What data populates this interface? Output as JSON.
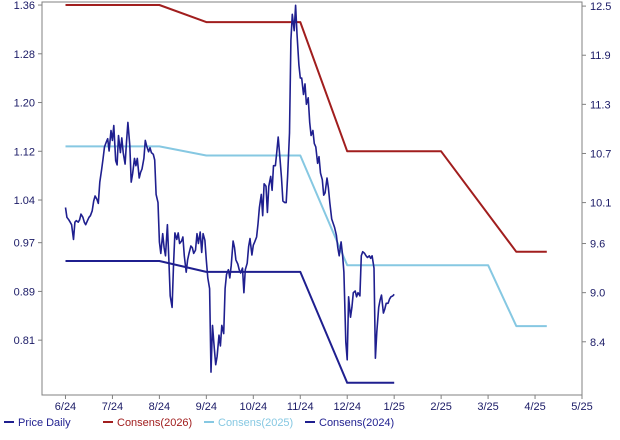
{
  "chart_data": {
    "type": "line",
    "x_ticks": [
      "6/24",
      "7/24",
      "8/24",
      "9/24",
      "10/24",
      "11/24",
      "12/24",
      "1/25",
      "2/25",
      "3/25",
      "4/25",
      "5/25"
    ],
    "y_left": {
      "ticks": [
        "1.36",
        "1.28",
        "1.20",
        "1.12",
        "1.04",
        "0.97",
        "0.89",
        "0.81"
      ],
      "min": 0.72,
      "max": 1.365
    },
    "y_right": {
      "ticks": [
        "12.5",
        "11.9",
        "11.3",
        "10.7",
        "10.1",
        "9.6",
        "9.0",
        "8.4"
      ],
      "min": 7.75,
      "max": 12.55
    },
    "grid": false,
    "legend_position": "bottom",
    "series": [
      {
        "name": "Price Daily",
        "color": "#1f1f8f",
        "axis": "right",
        "points": [
          [
            5.0,
            10.04
          ],
          [
            5.03,
            9.92
          ],
          [
            5.07,
            9.89
          ],
          [
            5.1,
            9.86
          ],
          [
            5.13,
            9.83
          ],
          [
            5.17,
            9.65
          ],
          [
            5.2,
            9.86
          ],
          [
            5.23,
            9.88
          ],
          [
            5.27,
            9.86
          ],
          [
            5.3,
            9.89
          ],
          [
            5.33,
            9.96
          ],
          [
            5.37,
            9.92
          ],
          [
            5.4,
            9.86
          ],
          [
            5.43,
            9.83
          ],
          [
            5.47,
            9.88
          ],
          [
            5.5,
            9.92
          ],
          [
            5.53,
            9.94
          ],
          [
            5.57,
            10.0
          ],
          [
            5.6,
            10.12
          ],
          [
            5.63,
            10.18
          ],
          [
            5.67,
            10.14
          ],
          [
            5.7,
            10.09
          ],
          [
            5.73,
            10.35
          ],
          [
            5.77,
            10.5
          ],
          [
            5.8,
            10.63
          ],
          [
            5.83,
            10.78
          ],
          [
            5.87,
            10.84
          ],
          [
            5.9,
            10.88
          ],
          [
            5.93,
            10.73
          ],
          [
            5.97,
            10.98
          ],
          [
            6.0,
            10.86
          ],
          [
            6.03,
            11.04
          ],
          [
            6.07,
            10.61
          ],
          [
            6.1,
            10.56
          ],
          [
            6.13,
            10.92
          ],
          [
            6.17,
            10.71
          ],
          [
            6.2,
            10.89
          ],
          [
            6.23,
            10.71
          ],
          [
            6.27,
            10.57
          ],
          [
            6.3,
            10.84
          ],
          [
            6.33,
            11.08
          ],
          [
            6.37,
            10.8
          ],
          [
            6.4,
            10.35
          ],
          [
            6.43,
            10.45
          ],
          [
            6.47,
            10.64
          ],
          [
            6.5,
            10.55
          ],
          [
            6.53,
            10.64
          ],
          [
            6.57,
            10.4
          ],
          [
            6.6,
            10.47
          ],
          [
            6.63,
            10.51
          ],
          [
            6.67,
            10.64
          ],
          [
            6.7,
            10.86
          ],
          [
            6.73,
            10.79
          ],
          [
            6.77,
            10.72
          ],
          [
            6.8,
            10.77
          ],
          [
            6.83,
            10.71
          ],
          [
            6.87,
            10.69
          ],
          [
            6.9,
            10.62
          ],
          [
            6.93,
            10.2
          ],
          [
            6.97,
            10.1
          ],
          [
            7.0,
            9.62
          ],
          [
            7.03,
            9.48
          ],
          [
            7.07,
            9.72
          ],
          [
            7.1,
            9.55
          ],
          [
            7.13,
            9.45
          ],
          [
            7.17,
            9.83
          ],
          [
            7.2,
            9.42
          ],
          [
            7.23,
            8.96
          ],
          [
            7.27,
            8.82
          ],
          [
            7.3,
            9.33
          ],
          [
            7.33,
            9.73
          ],
          [
            7.37,
            9.65
          ],
          [
            7.4,
            9.73
          ],
          [
            7.43,
            9.6
          ],
          [
            7.47,
            9.63
          ],
          [
            7.5,
            9.68
          ],
          [
            7.53,
            9.45
          ],
          [
            7.57,
            9.25
          ],
          [
            7.6,
            9.4
          ],
          [
            7.63,
            9.48
          ],
          [
            7.67,
            9.57
          ],
          [
            7.7,
            9.55
          ],
          [
            7.73,
            9.48
          ],
          [
            7.77,
            9.52
          ],
          [
            7.8,
            9.72
          ],
          [
            7.83,
            9.6
          ],
          [
            7.87,
            9.74
          ],
          [
            7.9,
            9.49
          ],
          [
            7.93,
            9.72
          ],
          [
            7.97,
            9.64
          ],
          [
            8.0,
            9.4
          ],
          [
            8.03,
            9.18
          ],
          [
            8.07,
            9.05
          ],
          [
            8.1,
            8.03
          ],
          [
            8.13,
            8.6
          ],
          [
            8.17,
            8.32
          ],
          [
            8.2,
            8.12
          ],
          [
            8.23,
            8.22
          ],
          [
            8.27,
            8.48
          ],
          [
            8.3,
            8.35
          ],
          [
            8.33,
            8.6
          ],
          [
            8.37,
            8.5
          ],
          [
            8.4,
            9.05
          ],
          [
            8.43,
            9.22
          ],
          [
            8.47,
            9.28
          ],
          [
            8.5,
            9.18
          ],
          [
            8.53,
            9.33
          ],
          [
            8.57,
            9.63
          ],
          [
            8.6,
            9.55
          ],
          [
            8.63,
            9.4
          ],
          [
            8.67,
            9.35
          ],
          [
            8.7,
            9.28
          ],
          [
            8.73,
            9.24
          ],
          [
            8.77,
            9.3
          ],
          [
            8.8,
            9.0
          ],
          [
            8.83,
            9.28
          ],
          [
            8.87,
            9.36
          ],
          [
            8.9,
            9.56
          ],
          [
            8.93,
            9.66
          ],
          [
            8.97,
            9.46
          ],
          [
            9.0,
            9.58
          ],
          [
            9.03,
            9.62
          ],
          [
            9.07,
            9.68
          ],
          [
            9.1,
            9.84
          ],
          [
            9.13,
            10.04
          ],
          [
            9.17,
            10.2
          ],
          [
            9.2,
            9.94
          ],
          [
            9.23,
            10.33
          ],
          [
            9.27,
            10.3
          ],
          [
            9.3,
            9.98
          ],
          [
            9.33,
            10.3
          ],
          [
            9.37,
            10.42
          ],
          [
            9.4,
            10.25
          ],
          [
            9.43,
            10.55
          ],
          [
            9.47,
            10.55
          ],
          [
            9.5,
            10.72
          ],
          [
            9.53,
            10.9
          ],
          [
            9.57,
            10.62
          ],
          [
            9.6,
            10.4
          ],
          [
            9.63,
            10.12
          ],
          [
            9.67,
            10.1
          ],
          [
            9.7,
            10.1
          ],
          [
            9.73,
            10.42
          ],
          [
            9.77,
            10.95
          ],
          [
            9.8,
            12.08
          ],
          [
            9.83,
            12.4
          ],
          [
            9.87,
            12.2
          ],
          [
            9.9,
            12.51
          ],
          [
            9.93,
            12.16
          ],
          [
            9.97,
            11.78
          ],
          [
            10.0,
            11.62
          ],
          [
            10.03,
            11.62
          ],
          [
            10.07,
            11.42
          ],
          [
            10.1,
            11.55
          ],
          [
            10.13,
            11.3
          ],
          [
            10.17,
            11.38
          ],
          [
            10.2,
            11.08
          ],
          [
            10.23,
            10.92
          ],
          [
            10.27,
            10.98
          ],
          [
            10.3,
            10.82
          ],
          [
            10.33,
            10.78
          ],
          [
            10.37,
            10.58
          ],
          [
            10.4,
            10.66
          ],
          [
            10.43,
            10.46
          ],
          [
            10.47,
            10.38
          ],
          [
            10.5,
            10.19
          ],
          [
            10.53,
            10.22
          ],
          [
            10.57,
            10.4
          ],
          [
            10.6,
            10.28
          ],
          [
            10.63,
            10.1
          ],
          [
            10.67,
            9.9
          ],
          [
            10.7,
            9.85
          ],
          [
            10.73,
            9.8
          ],
          [
            10.77,
            9.7
          ],
          [
            10.8,
            9.55
          ],
          [
            10.83,
            9.45
          ],
          [
            10.87,
            9.62
          ],
          [
            10.9,
            9.47
          ],
          [
            10.93,
            9.25
          ],
          [
            10.97,
            8.4
          ],
          [
            11.0,
            8.18
          ],
          [
            11.03,
            8.95
          ],
          [
            11.07,
            8.7
          ],
          [
            11.1,
            8.82
          ],
          [
            11.13,
            9.0
          ],
          [
            11.17,
            9.02
          ],
          [
            11.2,
            8.95
          ],
          [
            11.23,
            9.0
          ],
          [
            11.27,
            8.96
          ],
          [
            11.3,
            9.45
          ],
          [
            11.33,
            9.5
          ],
          [
            11.37,
            9.48
          ],
          [
            11.4,
            9.45
          ],
          [
            11.43,
            9.43
          ],
          [
            11.47,
            9.45
          ],
          [
            11.5,
            9.42
          ],
          [
            11.53,
            9.45
          ],
          [
            11.57,
            9.3
          ],
          [
            11.6,
            8.2
          ],
          [
            11.63,
            8.52
          ],
          [
            11.67,
            8.82
          ],
          [
            11.7,
            8.91
          ],
          [
            11.73,
            8.97
          ],
          [
            11.77,
            8.75
          ],
          [
            11.8,
            8.8
          ],
          [
            11.83,
            8.87
          ],
          [
            11.87,
            8.87
          ],
          [
            11.9,
            8.92
          ],
          [
            11.93,
            8.95
          ],
          [
            11.97,
            8.96
          ],
          [
            12.0,
            8.98
          ]
        ]
      },
      {
        "name": "Consens(2026)",
        "color": "#a11e1e",
        "axis": "left",
        "points": [
          [
            5.0,
            1.36
          ],
          [
            7.0,
            1.36
          ],
          [
            8.0,
            1.332
          ],
          [
            10.0,
            1.332
          ],
          [
            11.0,
            1.12
          ],
          [
            13.0,
            1.12
          ],
          [
            14.6,
            0.955
          ],
          [
            15.25,
            0.955
          ]
        ]
      },
      {
        "name": "Consens(2025)",
        "color": "#86c8e2",
        "axis": "left",
        "points": [
          [
            5.0,
            1.128
          ],
          [
            7.0,
            1.128
          ],
          [
            8.0,
            1.113
          ],
          [
            10.0,
            1.113
          ],
          [
            11.0,
            0.933
          ],
          [
            13.0,
            0.933
          ],
          [
            14.0,
            0.933
          ],
          [
            14.6,
            0.833
          ],
          [
            15.25,
            0.833
          ]
        ]
      },
      {
        "name": "Consens(2024)",
        "color": "#1f1f8f",
        "axis": "left",
        "points": [
          [
            5.0,
            0.94
          ],
          [
            7.0,
            0.94
          ],
          [
            8.0,
            0.922
          ],
          [
            10.0,
            0.922
          ],
          [
            11.0,
            0.74
          ],
          [
            12.0,
            0.74
          ]
        ]
      }
    ]
  }
}
